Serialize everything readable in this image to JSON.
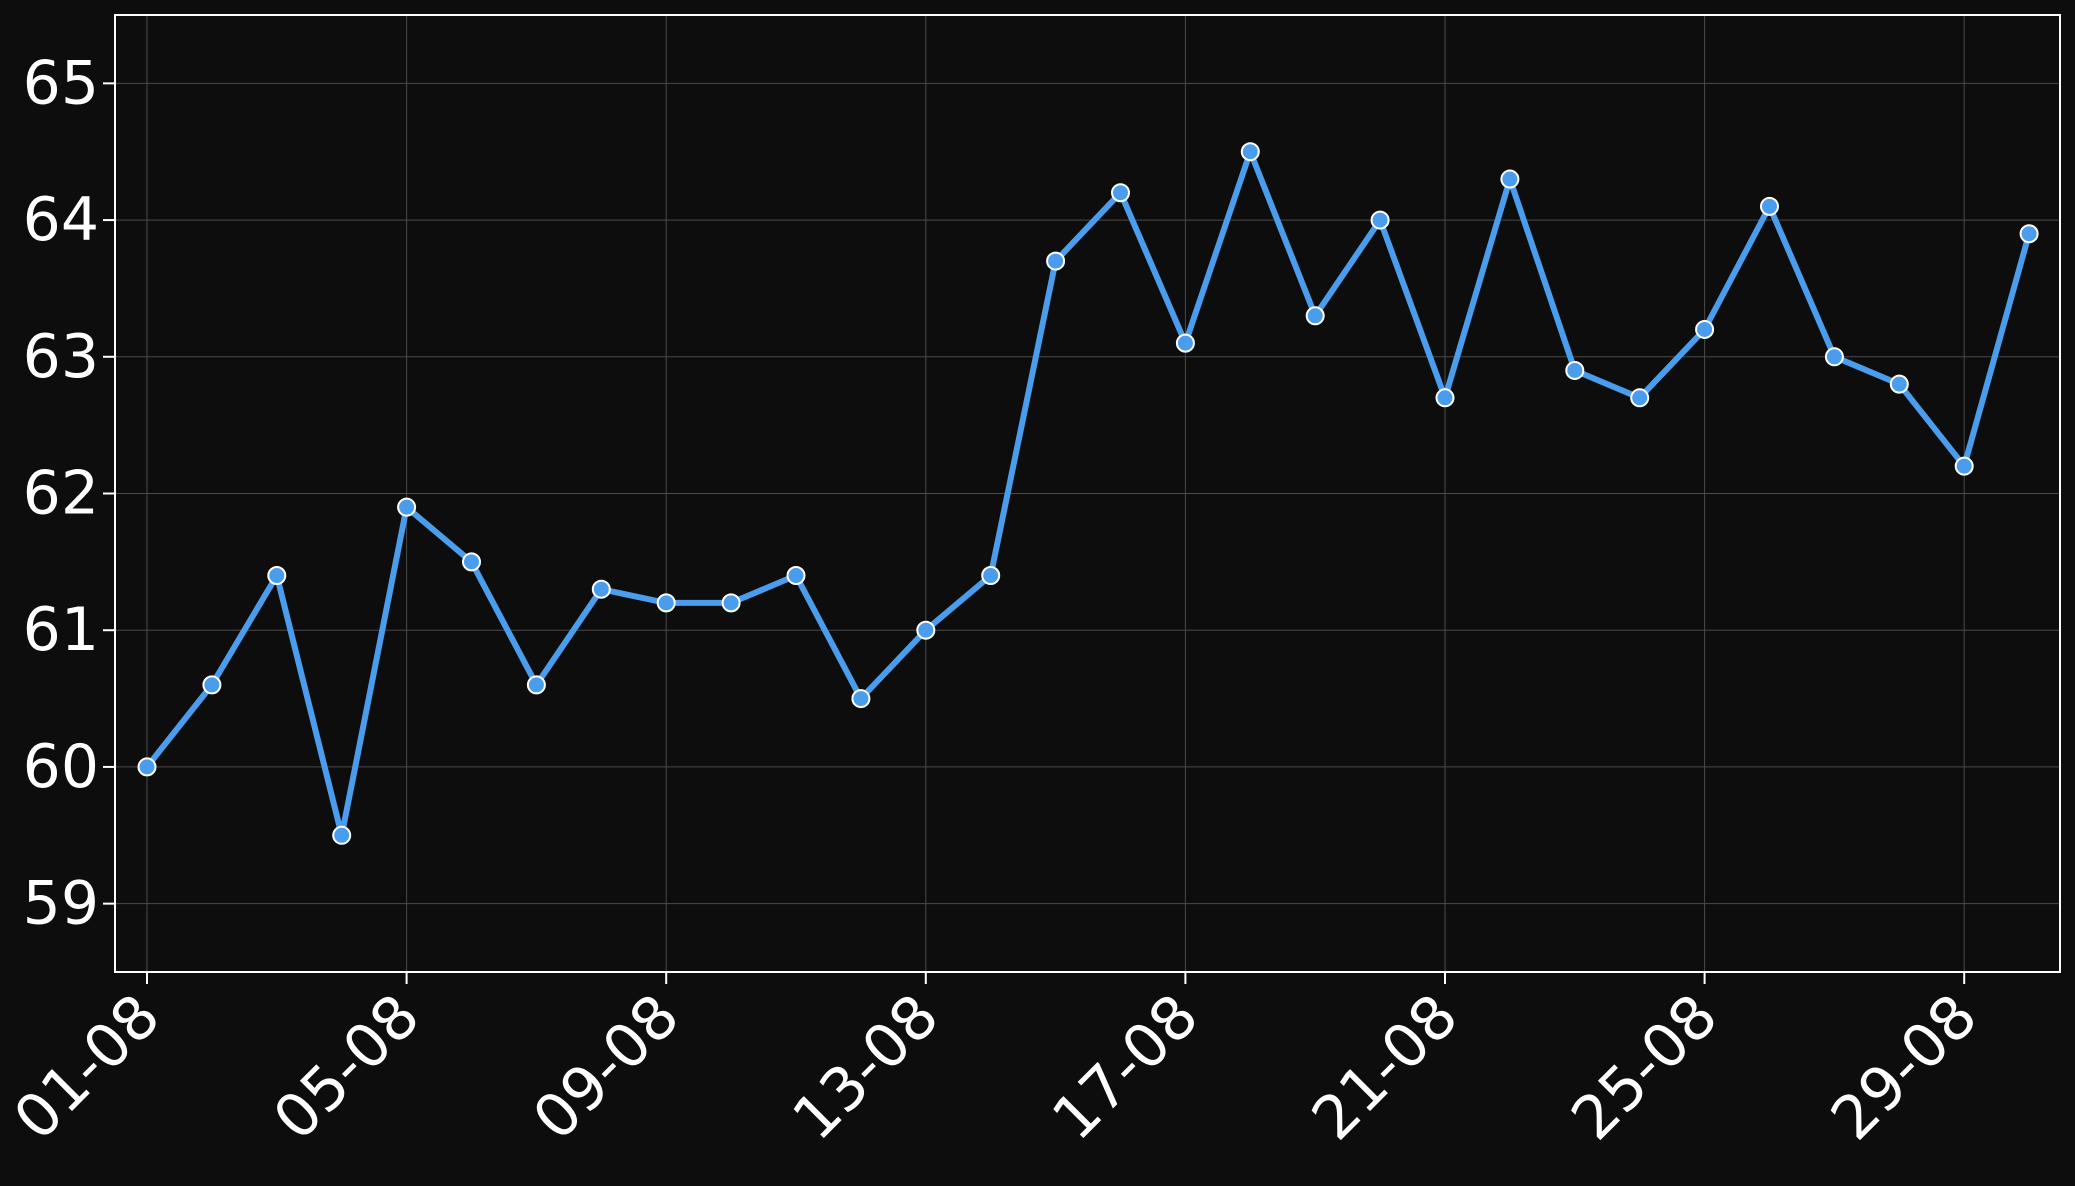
{
  "chart_data": {
    "type": "line",
    "title": "",
    "xlabel": "",
    "ylabel": "",
    "x": [
      "01-08",
      "02-08",
      "03-08",
      "04-08",
      "05-08",
      "06-08",
      "07-08",
      "08-08",
      "09-08",
      "10-08",
      "11-08",
      "12-08",
      "13-08",
      "14-08",
      "15-08",
      "16-08",
      "17-08",
      "18-08",
      "19-08",
      "20-08",
      "21-08",
      "22-08",
      "23-08",
      "24-08",
      "25-08",
      "26-08",
      "27-08",
      "28-08",
      "29-08",
      "30-08"
    ],
    "x_ticks": [
      "01-08",
      "05-08",
      "09-08",
      "13-08",
      "17-08",
      "21-08",
      "25-08",
      "29-08"
    ],
    "y_ticks": [
      59,
      60,
      61,
      62,
      63,
      64,
      65
    ],
    "ylim": [
      58.5,
      65.5
    ],
    "series": [
      {
        "values": [
          60.0,
          60.6,
          61.4,
          59.5,
          61.9,
          61.5,
          60.6,
          61.3,
          61.2,
          61.2,
          61.4,
          60.5,
          61.0,
          61.4,
          63.7,
          64.2,
          63.1,
          64.5,
          63.3,
          64.0,
          62.7,
          64.3,
          62.9,
          62.7,
          63.2,
          64.1,
          63.0,
          62.8,
          62.2,
          63.9
        ]
      }
    ],
    "grid": true,
    "legend": "none",
    "colors": {
      "background": "#0d0d0d",
      "line": "#4a9ced",
      "marker_edge": "#ffffff",
      "axes": "#ffffff",
      "grid": "#4a4a4a"
    }
  }
}
